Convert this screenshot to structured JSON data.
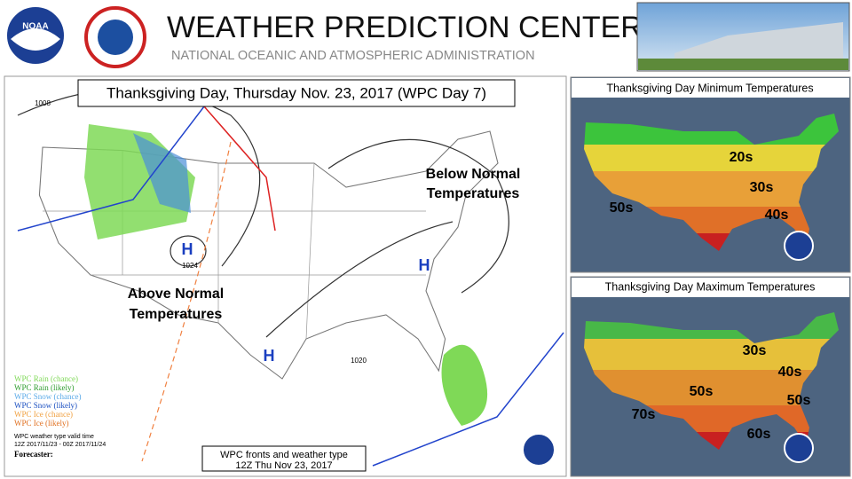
{
  "header": {
    "title": "WEATHER PREDICTION CENTER",
    "subtitle": "NATIONAL OCEANIC AND ATMOSPHERIC ADMINISTRATION",
    "logo": "NOAA"
  },
  "main_map": {
    "title": "Thanksgiving Day, Thursday Nov. 23, 2017 (WPC Day 7)",
    "below_normal": [
      "Below Normal",
      "Temperatures"
    ],
    "above_normal": [
      "Above Normal",
      "Temperatures"
    ],
    "highs": [
      "H",
      "H",
      "H"
    ],
    "pressures": [
      "1024",
      "1020",
      "1008"
    ],
    "legend": [
      "WPC Rain (chance)",
      "WPC Rain (likely)",
      "WPC Snow (chance)",
      "WPC Snow (likely)",
      "WPC Ice (chance)",
      "WPC Ice (likely)"
    ],
    "valid_time": [
      "WPC weather type valid time",
      "12Z 2017/11/23 - 00Z 2017/11/24"
    ],
    "forecaster": "Forecaster:",
    "caption": [
      "WPC fronts and weather type",
      "12Z Thu Nov 23, 2017"
    ]
  },
  "min_panel": {
    "title": "Thanksgiving Day Minimum Temperatures",
    "labels": [
      "20s",
      "30s",
      "40s",
      "50s"
    ]
  },
  "max_panel": {
    "title": "Thanksgiving Day Maximum Temperatures",
    "labels": [
      "30s",
      "40s",
      "50s",
      "50s",
      "70s",
      "60s"
    ]
  }
}
